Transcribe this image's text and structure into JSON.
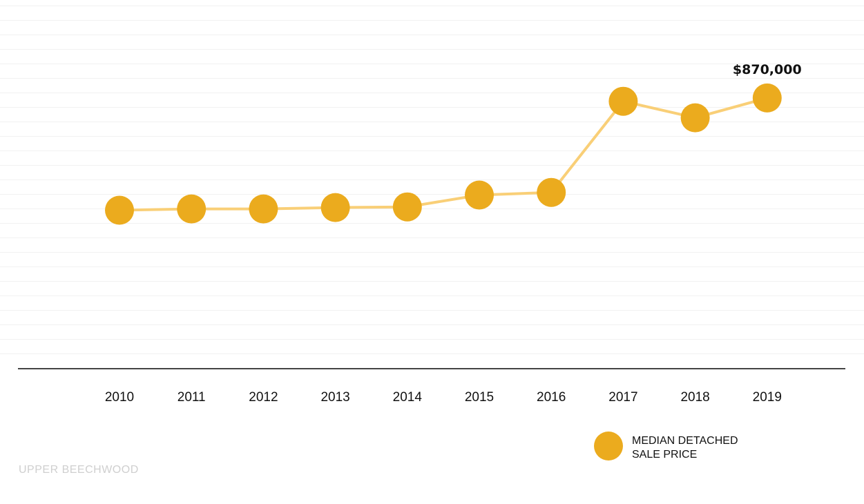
{
  "chart_data": {
    "type": "line",
    "categories": [
      "2010",
      "2011",
      "2012",
      "2013",
      "2014",
      "2015",
      "2016",
      "2017",
      "2018",
      "2019"
    ],
    "series": [
      {
        "name": "MEDIAN DETACHED SALE PRICE",
        "values": [
          700000,
          702000,
          702000,
          704000,
          705000,
          723000,
          727000,
          865000,
          840000,
          870000
        ]
      }
    ],
    "annotations": [
      {
        "category": "2019",
        "text": "$870,000"
      }
    ],
    "legend": {
      "lines": [
        "MEDIAN DETACHED",
        "SALE PRICE"
      ],
      "placement": "bottom-right"
    },
    "ylim": [
      460000,
      1010000
    ],
    "grid": true,
    "colors": {
      "marker": "#EBAB1E",
      "line": "#F9CF77",
      "axis": "#444444",
      "grid": "#F1F1F1"
    }
  },
  "footer": {
    "label": "UPPER BEECHWOOD"
  }
}
